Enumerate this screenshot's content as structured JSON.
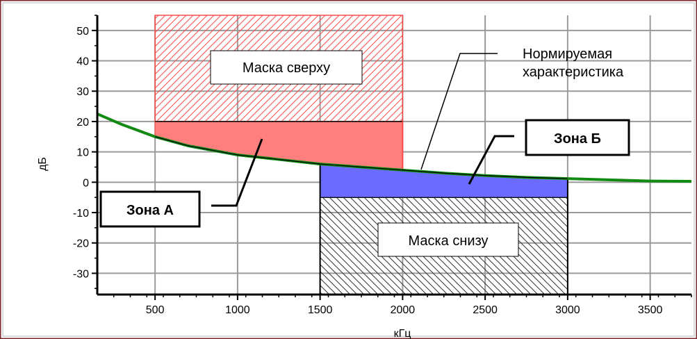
{
  "chart_data": {
    "type": "area",
    "xlabel": "кГц",
    "ylabel": "дБ",
    "xlim": [
      150,
      3750
    ],
    "ylim": [
      -37,
      55
    ],
    "xticks": [
      500,
      1000,
      1500,
      2000,
      2500,
      3000,
      3500
    ],
    "yticks": [
      -30,
      -20,
      -10,
      0,
      10,
      20,
      30,
      40,
      50
    ],
    "grid": true,
    "colors": {
      "curve": "#138a13",
      "zone_a": "#ff7f7f",
      "zone_b": "#6b6bff",
      "mask_top": "#ff4a4a",
      "mask_bottom": "#333333",
      "frame_outer": "#7a2c2c"
    },
    "series": [
      {
        "kind": "curve",
        "x": [
          150,
          300,
          500,
          700,
          1000,
          1250,
          1500,
          1750,
          2000,
          2250,
          2500,
          2750,
          3000,
          3250,
          3500,
          3750
        ],
        "values": [
          22.5,
          19,
          15,
          12,
          9,
          7.5,
          6,
          5,
          4,
          3,
          2.2,
          1.6,
          1.2,
          0.8,
          0.4,
          0.3
        ]
      }
    ],
    "regions": [
      {
        "name": "mask_top",
        "x": [
          500,
          2000
        ],
        "y": [
          20,
          55
        ],
        "pattern": "hatch-up"
      },
      {
        "name": "zone_a",
        "x": [
          500,
          2000
        ],
        "y_top": 20,
        "bottom": "curve"
      },
      {
        "name": "zone_b",
        "x": [
          1500,
          3000
        ],
        "y_bottom": -5,
        "top": "curve"
      },
      {
        "name": "mask_bottom",
        "x": [
          1500,
          3000
        ],
        "y": [
          -37,
          -5
        ],
        "pattern": "hatch-down"
      }
    ],
    "annotations": {
      "mask_top": "Маска сверху",
      "mask_bottom": "Маска снизу",
      "normalized_line1": "Нормируемая",
      "normalized_line2": "характеристика",
      "zone_a": "Зона А",
      "zone_b": "Зона Б"
    }
  }
}
